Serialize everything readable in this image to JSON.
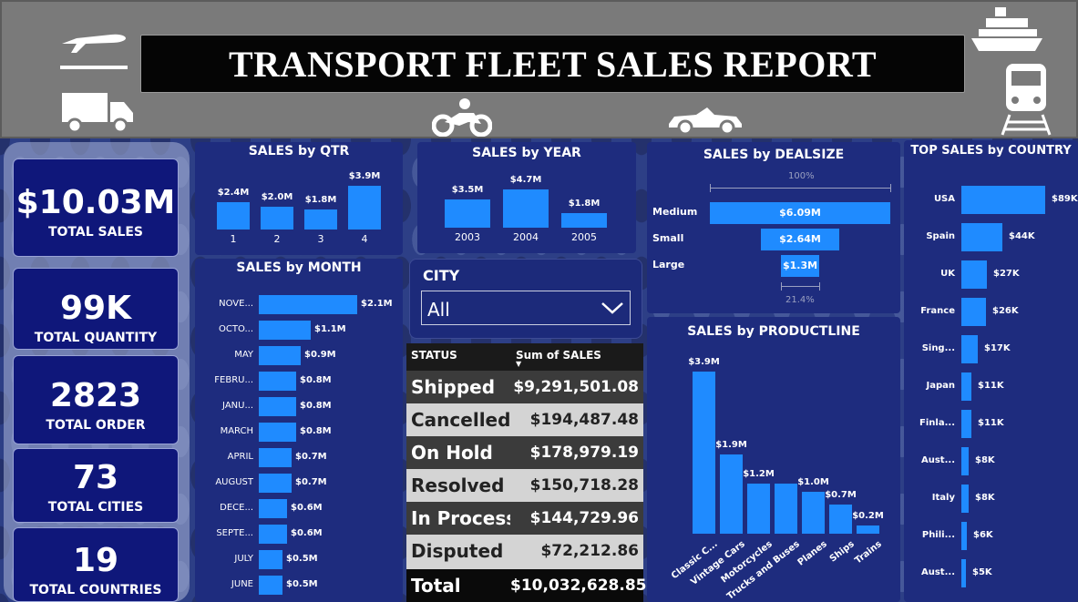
{
  "title": "TRANSPORT FLEET SALES REPORT",
  "kpis": [
    {
      "value": "$10.03M",
      "label": "TOTAL SALES"
    },
    {
      "value": "99K",
      "label": "TOTAL QUANTITY"
    },
    {
      "value": "2823",
      "label": "TOTAL ORDER"
    },
    {
      "value": "73",
      "label": "TOTAL CITIES"
    },
    {
      "value": "19",
      "label": "TOTAL COUNTRIES"
    }
  ],
  "qtr": {
    "title": "SALES by QTR",
    "categories": [
      "1",
      "2",
      "3",
      "4"
    ],
    "values": [
      2.4,
      2.0,
      1.8,
      3.9
    ],
    "labels": [
      "$2.4M",
      "$2.0M",
      "$1.8M",
      "$3.9M"
    ]
  },
  "year": {
    "title": "SALES by YEAR",
    "categories": [
      "2003",
      "2004",
      "2005"
    ],
    "values": [
      3.5,
      4.7,
      1.8
    ],
    "labels": [
      "$3.5M",
      "$4.7M",
      "$1.8M"
    ]
  },
  "dealsize": {
    "title": "SALES by DEALSIZE",
    "top_pct": "100%",
    "bottom_pct": "21.4%",
    "categories": [
      "Medium",
      "Small",
      "Large"
    ],
    "values": [
      6.09,
      2.64,
      1.3
    ],
    "labels": [
      "$6.09M",
      "$2.64M",
      "$1.3M"
    ]
  },
  "country": {
    "title": "TOP SALES by COUNTRY",
    "categories": [
      "USA",
      "Spain",
      "UK",
      "France",
      "Sing...",
      "Japan",
      "Finla...",
      "Aust...",
      "Italy",
      "Phili...",
      "Aust..."
    ],
    "values": [
      89,
      44,
      27,
      26,
      17,
      11,
      11,
      8,
      8,
      6,
      5
    ],
    "labels": [
      "$89K",
      "$44K",
      "$27K",
      "$26K",
      "$17K",
      "$11K",
      "$11K",
      "$8K",
      "$8K",
      "$6K",
      "$5K"
    ]
  },
  "month": {
    "title": "SALES by MONTH",
    "categories": [
      "NOVE...",
      "OCTO...",
      "MAY",
      "FEBRU...",
      "JANU...",
      "MARCH",
      "APRIL",
      "AUGUST",
      "DECE...",
      "SEPTE...",
      "JULY",
      "JUNE"
    ],
    "values": [
      2.1,
      1.1,
      0.9,
      0.8,
      0.8,
      0.8,
      0.7,
      0.7,
      0.6,
      0.6,
      0.5,
      0.5
    ],
    "labels": [
      "$2.1M",
      "$1.1M",
      "$0.9M",
      "$0.8M",
      "$0.8M",
      "$0.8M",
      "$0.7M",
      "$0.7M",
      "$0.6M",
      "$0.6M",
      "$0.5M",
      "$0.5M"
    ]
  },
  "productline": {
    "title": "SALES by PRODUCTLINE",
    "categories": [
      "Classic C...",
      "Vintage Cars",
      "Motorcycles",
      "Trucks and Buses",
      "Planes",
      "Ships",
      "Trains"
    ],
    "values": [
      3.9,
      1.9,
      1.2,
      1.2,
      1.0,
      0.7,
      0.2
    ],
    "labels": [
      "$3.9M",
      "$1.9M",
      "$1.2M",
      "",
      "$1.0M",
      "$0.7M",
      "$0.2M"
    ]
  },
  "city": {
    "label": "CITY",
    "selected": "All"
  },
  "status_table": {
    "headers": [
      "STATUS",
      "Sum of SALES"
    ],
    "rows": [
      {
        "status": "Shipped",
        "sales": "$9,291,501.08"
      },
      {
        "status": "Cancelled",
        "sales": "$194,487.48"
      },
      {
        "status": "On Hold",
        "sales": "$178,979.19"
      },
      {
        "status": "Resolved",
        "sales": "$150,718.28"
      },
      {
        "status": "In Process",
        "sales": "$144,729.96"
      },
      {
        "status": "Disputed",
        "sales": "$72,212.86"
      }
    ],
    "total_label": "Total",
    "total_value": "$10,032,628.85"
  },
  "colors": {
    "bar": "#1f8bff",
    "panel": "#1e2c7e",
    "kpi": "#0f177a",
    "header": "#7a7a7a"
  }
}
